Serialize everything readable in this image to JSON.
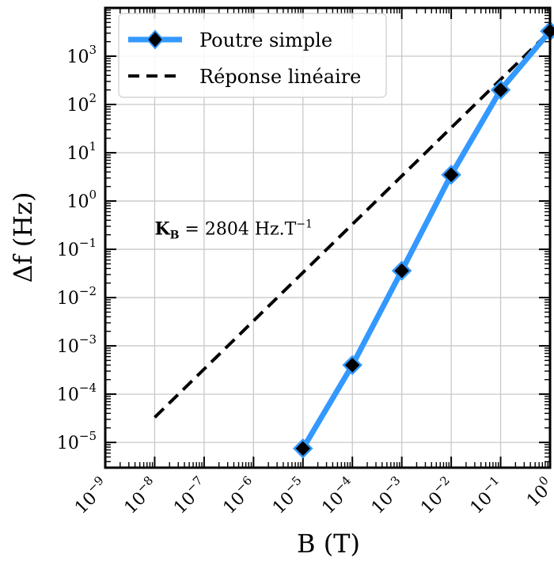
{
  "chart_data": {
    "type": "line",
    "xlabel": "B (T)",
    "ylabel": "Δf (Hz)",
    "x_scale": "log",
    "y_scale": "log",
    "xlim": [
      1e-09,
      1
    ],
    "ylim": [
      3e-06,
      10000.0
    ],
    "x_ticks": [
      1e-09,
      1e-08,
      1e-07,
      1e-06,
      1e-05,
      0.0001,
      0.001,
      0.01,
      0.1,
      1
    ],
    "x_tick_labels": [
      {
        "base": "10",
        "exp": "−9"
      },
      {
        "base": "10",
        "exp": "−8"
      },
      {
        "base": "10",
        "exp": "−7"
      },
      {
        "base": "10",
        "exp": "−6"
      },
      {
        "base": "10",
        "exp": "−5"
      },
      {
        "base": "10",
        "exp": "−4"
      },
      {
        "base": "10",
        "exp": "−3"
      },
      {
        "base": "10",
        "exp": "−2"
      },
      {
        "base": "10",
        "exp": "−1"
      },
      {
        "base": "10",
        "exp": "0"
      }
    ],
    "y_ticks": [
      1e-05,
      0.0001,
      0.001,
      0.01,
      0.1,
      1,
      10,
      100,
      1000
    ],
    "y_tick_labels": [
      {
        "base": "10",
        "exp": "−5"
      },
      {
        "base": "10",
        "exp": "−4"
      },
      {
        "base": "10",
        "exp": "−3"
      },
      {
        "base": "10",
        "exp": "−2"
      },
      {
        "base": "10",
        "exp": "−1"
      },
      {
        "base": "10",
        "exp": "0"
      },
      {
        "base": "10",
        "exp": "1"
      },
      {
        "base": "10",
        "exp": "2"
      },
      {
        "base": "10",
        "exp": "3"
      }
    ],
    "grid": true,
    "legend_position": "top-left",
    "series": [
      {
        "name": "Poutre simple",
        "style": "solid",
        "marker": "diamond",
        "color": "#3399ff",
        "marker_color": "#000000",
        "x": [
          1e-05,
          0.0001,
          0.001,
          0.01,
          0.1,
          1
        ],
        "y": [
          7.5e-06,
          0.0004,
          0.036,
          3.5,
          200,
          3300
        ]
      },
      {
        "name": "Réponse linéaire",
        "style": "dashed",
        "color": "#000000",
        "x": [
          1e-08,
          1
        ],
        "y": [
          3.3e-05,
          3300
        ]
      }
    ],
    "annotations": [
      {
        "text_bold": "K",
        "sub": "B",
        "rest": " = 2804 Hz.T",
        "sup": "−1",
        "at": [
          1e-08,
          0.2
        ]
      }
    ]
  }
}
